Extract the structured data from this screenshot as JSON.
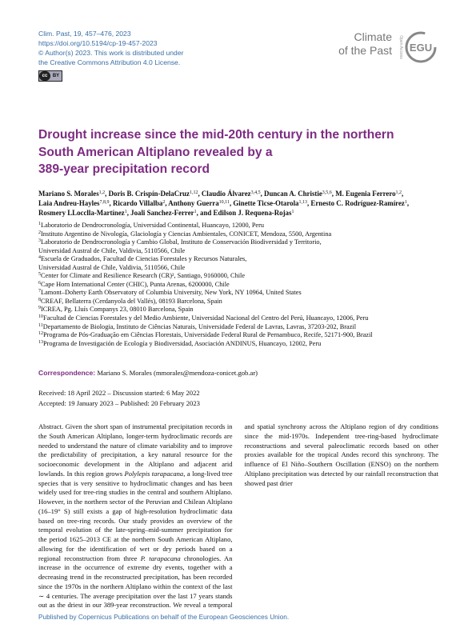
{
  "header": {
    "journal_info": [
      "Clim. Past, 19, 457–476, 2023",
      "https://doi.org/10.5194/cp-19-457-2023",
      "© Author(s) 2023. This work is distributed under",
      "the Creative Commons Attribution 4.0 License."
    ],
    "license_badge": [
      "cc",
      "BY"
    ],
    "logo": {
      "journal": [
        "Climate",
        "of the Past"
      ],
      "open_access": "Open Access",
      "egu": "EGU"
    }
  },
  "title": [
    "Drought increase since the mid-20th century in the northern",
    "South American Altiplano revealed by a",
    "389-year precipitation record"
  ],
  "authors": [
    {
      "name": "Mariano S. Morales",
      "sup": "1,2",
      "sep": ","
    },
    {
      "name": "Doris B. Crispín-DelaCruz",
      "sup": "1,12",
      "sep": ","
    },
    {
      "name": "Claudio Álvarez",
      "sup": "3,4,5",
      "sep": ","
    },
    {
      "name": "Duncan A. Christie",
      "sup": "3,5,6",
      "sep": ","
    },
    {
      "name": "M. Eugenia Ferrero",
      "sup": "1,2",
      "sep": ","
    },
    {
      "name": "Laia Andreu-Hayles",
      "sup": "7,8,9",
      "sep": ","
    },
    {
      "name": "Ricardo Villalba",
      "sup": "2",
      "sep": ","
    },
    {
      "name": "Anthony Guerra",
      "sup": "10,11",
      "sep": ","
    },
    {
      "name": "Ginette Ticse-Otarola",
      "sup": "1,13",
      "sep": ","
    },
    {
      "name": "Ernesto C. Rodríguez-Ramírez",
      "sup": "1",
      "sep": ","
    },
    {
      "name": "Rosmery LLocclla-Martínez",
      "sup": "1",
      "sep": ","
    },
    {
      "name": "Joali Sanchez-Ferrer",
      "sup": "1",
      "sep": ", and"
    },
    {
      "name": "Edilson J. Requena-Rojas",
      "sup": "1"
    }
  ],
  "affiliations": [
    {
      "num": "1",
      "lines": [
        "Laboratorio de Dendrocronología, Universidad Continental, Huancayo, 12000, Peru"
      ]
    },
    {
      "num": "2",
      "lines": [
        "Instituto Argentino de Nivología, Glaciología y Ciencias Ambientales, CONICET, Mendoza, 5500, Argentina"
      ]
    },
    {
      "num": "3",
      "lines": [
        "Laboratorio de Dendrocronología y Cambio Global, Instituto de Conservación Biodiversidad y Territorio,",
        "Universidad Austral de Chile, Valdivia, 5110566, Chile"
      ]
    },
    {
      "num": "4",
      "lines": [
        "Escuela de Graduados, Facultad de Ciencias Forestales y Recursos Naturales,",
        "Universidad Austral de Chile, Valdivia, 5110566, Chile"
      ]
    },
    {
      "num": "5",
      "lines": [
        "Center for Climate and Resilience Research (CR)², Santiago, 9160000, Chile"
      ]
    },
    {
      "num": "6",
      "lines": [
        "Cape Horn International Center (CHIC), Punta Arenas, 6200000, Chile"
      ]
    },
    {
      "num": "7",
      "lines": [
        "Lamont–Doherty Earth Observatory of Columbia University, New York, NY 10964, United States"
      ]
    },
    {
      "num": "8",
      "lines": [
        "CREAF, Bellaterra (Cerdanyola del Vallés), 08193 Barcelona, Spain"
      ]
    },
    {
      "num": "9",
      "lines": [
        "ICREA, Pg. Lluís Companys 23, 08010 Barcelona, Spain"
      ]
    },
    {
      "num": "10",
      "lines": [
        "Facultad de Ciencias Forestales y del Medio Ambiente, Universidad Nacional del Centro del Perú, Huancayo, 12006, Peru"
      ]
    },
    {
      "num": "11",
      "lines": [
        "Departamento de Biologia, Instituto de Ciências Naturais, Universidade Federal de Lavras, Lavras, 37203-202, Brazil"
      ]
    },
    {
      "num": "12",
      "lines": [
        "Programa de Pós-Graduação em Ciências Florestais, Universidade Federal Rural de Pernambuco, Recife, 52171-900, Brazil"
      ]
    },
    {
      "num": "13",
      "lines": [
        "Programa de Investigación de Ecología y Biodiversidad, Asociación ANDINUS, Huancayo, 12002, Peru"
      ]
    }
  ],
  "correspondence": {
    "label": "Correspondence:",
    "text": "Mariano S. Morales (mmorales@mendoza-conicet.gob.ar)"
  },
  "dates": [
    "Received: 18 April 2022 – Discussion started: 6 May 2022",
    "Accepted: 19 January 2023 – Published: 20 February 2023"
  ],
  "abstract": {
    "label": "Abstract.",
    "segments": [
      {
        "text": "Given the short span of instrumental precipitation records in the South American Altiplano, longer-term hydroclimatic records are needed to understand the nature of climate variability and to improve the predictability of precipitation, a key natural resource for the socioeconomic development in the Altiplano and adjacent arid lowlands. In this region grows "
      },
      {
        "text": "Polylepis tarapacana",
        "italic": true
      },
      {
        "text": ", a long-lived tree species that is very sensitive to hydroclimatic changes and has been widely used for tree-ring studies in the central and southern Altiplano. However, in the northern sector of the Peruvian and Chilean Altiplano (16–19° S) still exists a gap of high-resolution hydroclimatic data based on tree-ring records. Our study provides an overview of the temporal evolution of the late-spring–mid-summer precipitation for the period 1625–2013 CE at the northern South American Altiplano, allowing for the identification of wet or dry periods based on a regional reconstruction from three "
      },
      {
        "text": "P. tarapacana",
        "italic": true
      },
      {
        "text": " chronologies. An increase in the occurrence of extreme dry events, together with a decreasing trend in the reconstructed precipitation, has been recorded since the 1970s in the northern Altiplano within the context of the last ∼ 4 centuries. The average precipitation over the last 17 years stands out as the driest in our 389-year reconstruction. We reveal a temporal and spatial synchrony across the Altiplano region of dry conditions since the mid-1970s. Independent tree-ring-based hydroclimate reconstructions and several paleoclimatic records based on other proxies available for the tropical Andes record this synchrony. The influence of El Niño–Southern Oscillation (ENSO) on the northern Altiplano precipitation was detected by our rainfall reconstruction that showed past drier"
      }
    ]
  },
  "footer": "Published by Copernicus Publications on behalf of the European Geosciences Union."
}
